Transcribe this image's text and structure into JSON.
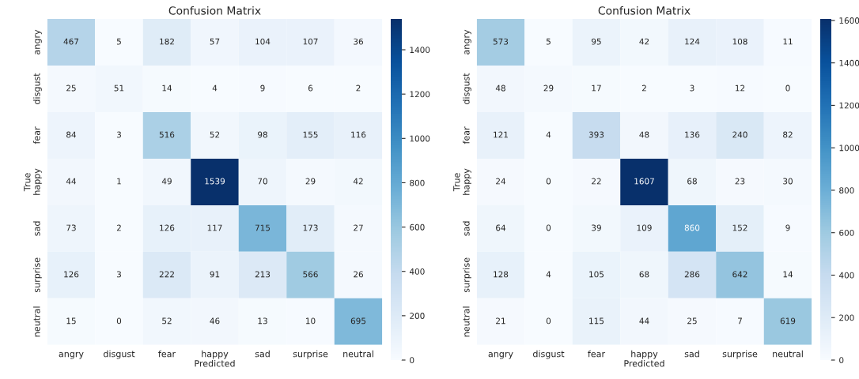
{
  "chart_data": [
    {
      "type": "heatmap",
      "title": "Confusion Matrix",
      "xlabel": "Predicted",
      "ylabel": "True",
      "categories": [
        "angry",
        "disgust",
        "fear",
        "happy",
        "sad",
        "surprise",
        "neutral"
      ],
      "y_categories": [
        "angry",
        "disgust",
        "fear",
        "happy",
        "sad",
        "surprise",
        "neutral"
      ],
      "cells": [
        [
          467,
          5,
          182,
          57,
          104,
          107,
          36
        ],
        [
          25,
          51,
          14,
          4,
          9,
          6,
          2
        ],
        [
          84,
          3,
          516,
          52,
          98,
          155,
          116
        ],
        [
          44,
          1,
          49,
          1539,
          70,
          29,
          42
        ],
        [
          73,
          2,
          126,
          117,
          715,
          173,
          27
        ],
        [
          126,
          3,
          222,
          91,
          213,
          566,
          26
        ],
        [
          15,
          0,
          52,
          46,
          13,
          10,
          695
        ]
      ],
      "clim": [
        0,
        1539
      ],
      "cticks": [
        0,
        200,
        400,
        600,
        800,
        1000,
        1200,
        1400
      ],
      "data_labels": true
    },
    {
      "type": "heatmap",
      "title": "Confusion Matrix",
      "xlabel": "Predicted",
      "ylabel": "True",
      "categories": [
        "angry",
        "disgust",
        "fear",
        "happy",
        "sad",
        "surprise",
        "neutral"
      ],
      "y_categories": [
        "angry",
        "disgust",
        "fear",
        "happy",
        "sad",
        "surprise",
        "neutral"
      ],
      "cells": [
        [
          573,
          5,
          95,
          42,
          124,
          108,
          11
        ],
        [
          48,
          29,
          17,
          2,
          3,
          12,
          0
        ],
        [
          121,
          4,
          393,
          48,
          136,
          240,
          82
        ],
        [
          24,
          0,
          22,
          1607,
          68,
          23,
          30
        ],
        [
          64,
          0,
          39,
          109,
          860,
          152,
          9
        ],
        [
          128,
          4,
          105,
          68,
          286,
          642,
          14
        ],
        [
          21,
          0,
          115,
          44,
          25,
          7,
          619
        ]
      ],
      "clim": [
        0,
        1607
      ],
      "cticks": [
        0,
        200,
        400,
        600,
        800,
        1000,
        1200,
        1400,
        1600
      ],
      "data_labels": true
    }
  ]
}
